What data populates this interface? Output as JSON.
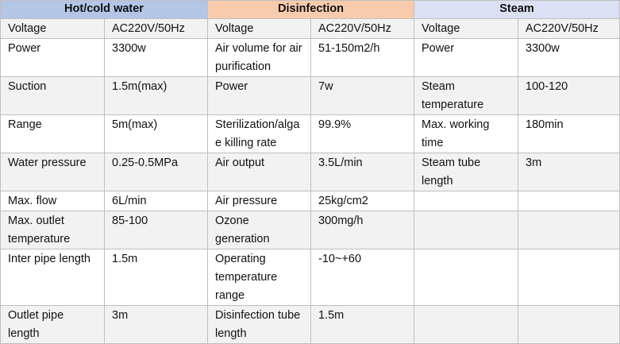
{
  "headers": [
    "Hot/cold water",
    "Disinfection",
    "Steam"
  ],
  "colors": {
    "hot_header": "#b4c6e7",
    "disinfection_header": "#f8cbad",
    "steam_header": "#d9e1f2",
    "row_shade": "#f2f2f2",
    "border": "#bfbfbf"
  },
  "rows": [
    [
      "Voltage",
      "AC220V/50Hz",
      "Voltage",
      "AC220V/50Hz",
      "Voltage",
      "AC220V/50Hz"
    ],
    [
      "Power",
      "3300w",
      "Air volume for air purification",
      "51-150m2/h",
      "Power",
      "3300w"
    ],
    [
      "Suction",
      "1.5m(max)",
      "Power",
      "7w",
      "Steam temperature",
      "100-120"
    ],
    [
      "Range",
      "5m(max)",
      "Sterilization/algae killing rate",
      "99.9%",
      "Max. working time",
      "180min"
    ],
    [
      "Water pressure",
      "0.25-0.5MPa",
      "Air output",
      "3.5L/min",
      "Steam tube length",
      "3m"
    ],
    [
      "Max. flow",
      "6L/min",
      "Air pressure",
      "25kg/cm2",
      "",
      ""
    ],
    [
      "Max. outlet temperature",
      "85-100",
      "Ozone generation",
      "300mg/h",
      "",
      ""
    ],
    [
      "Inter pipe length",
      "1.5m",
      "Operating temperature range",
      "-10~+60",
      "",
      ""
    ],
    [
      "Outlet pipe length",
      "3m",
      "Disinfection tube length",
      "1.5m",
      "",
      ""
    ]
  ]
}
